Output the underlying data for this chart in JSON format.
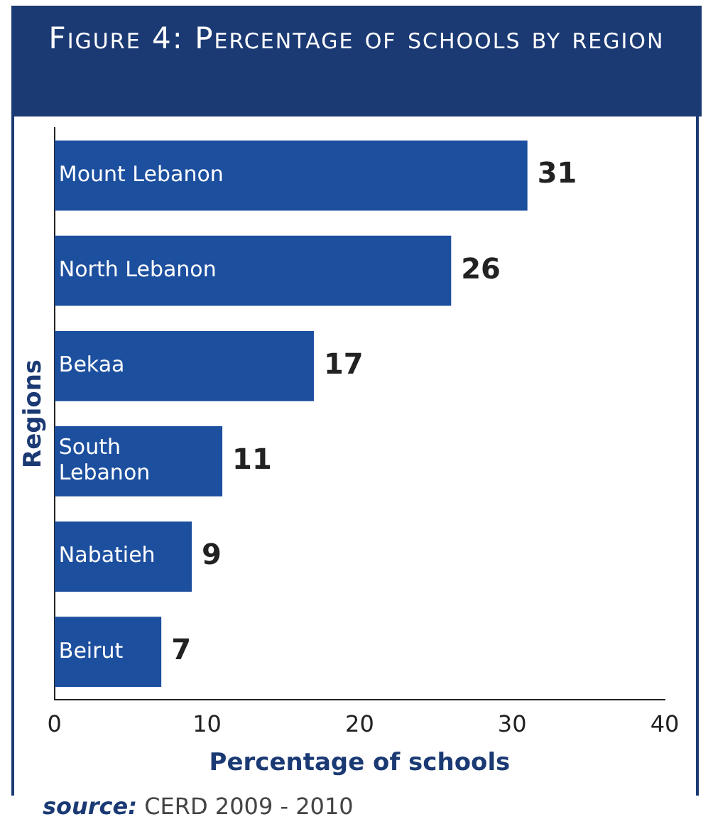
{
  "chart_data": {
    "type": "bar",
    "orientation": "horizontal",
    "title": "Figure 4: Percentage of schools by region",
    "categories": [
      "Mount Lebanon",
      "North Lebanon",
      "Bekaa",
      "South Lebanon",
      "Nabatieh",
      "Beirut"
    ],
    "values": [
      31,
      26,
      17,
      11,
      9,
      7
    ],
    "color": "#1d4f9f",
    "xlim": [
      0,
      40
    ],
    "xticks": [
      0,
      10,
      20,
      30,
      40
    ],
    "grid": false,
    "legend": false,
    "data_labels": true,
    "xlabel": "Percentage of schools",
    "ylabel": "Regions",
    "annotations": [
      "source: CERD 2009 - 2010"
    ]
  }
}
